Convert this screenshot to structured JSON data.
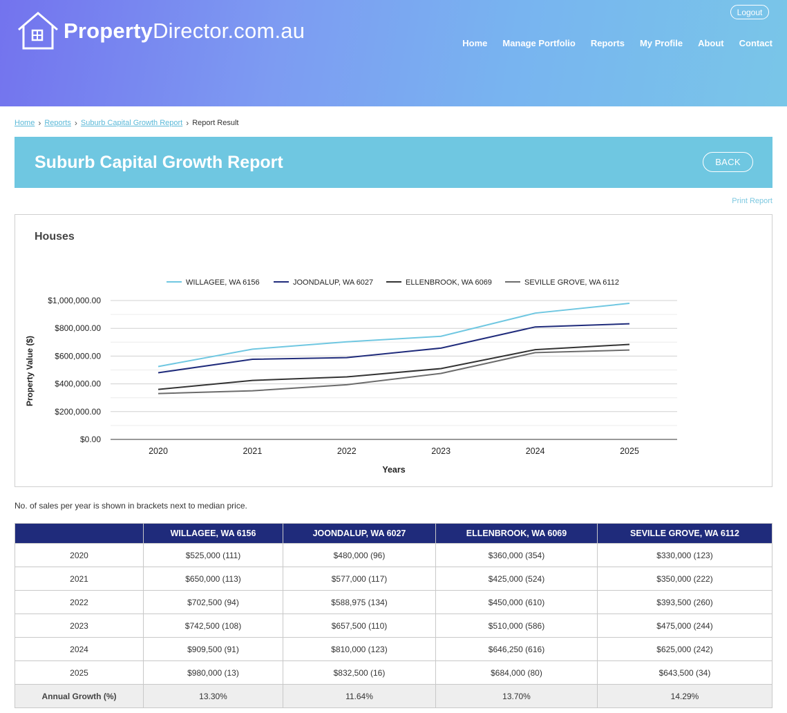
{
  "header": {
    "logo_bold": "Property",
    "logo_rest": "Director.com.au",
    "logout": "Logout",
    "nav": [
      "Home",
      "Manage Portfolio",
      "Reports",
      "My Profile",
      "About",
      "Contact"
    ]
  },
  "breadcrumb": {
    "home": "Home",
    "reports": "Reports",
    "report": "Suburb Capital Growth Report",
    "current": "Report Result"
  },
  "banner": {
    "title": "Suburb Capital Growth Report",
    "back": "BACK"
  },
  "print_label": "Print Report",
  "chart_title": "Houses",
  "note": "No. of sales per year is shown in brackets next to median price.",
  "colors": {
    "willagee": "#6fc7e1",
    "joondalup": "#1f2b7b",
    "ellenbrook": "#333333",
    "seville": "#6b6b6b",
    "table_header": "#1f2b7b",
    "banner": "#6fc7e1"
  },
  "chart_data": {
    "type": "line",
    "xlabel": "Years",
    "ylabel": "Property Value ($)",
    "categories": [
      "2020",
      "2021",
      "2022",
      "2023",
      "2024",
      "2025"
    ],
    "ylim": [
      0,
      1000000
    ],
    "yticks": [
      "$0.00",
      "$200,000.00",
      "$400,000.00",
      "$600,000.00",
      "$800,000.00",
      "$1,000,000.00"
    ],
    "legend_position": "top",
    "grid": true,
    "series": [
      {
        "name": "WILLAGEE, WA 6156",
        "color": "#6fc7e1",
        "values": [
          525000,
          650000,
          702500,
          742500,
          909500,
          980000
        ]
      },
      {
        "name": "JOONDALUP, WA 6027",
        "color": "#1f2b7b",
        "values": [
          480000,
          577000,
          588975,
          657500,
          810000,
          832500
        ]
      },
      {
        "name": "ELLENBROOK, WA 6069",
        "color": "#333333",
        "values": [
          360000,
          425000,
          450000,
          510000,
          646250,
          684000
        ]
      },
      {
        "name": "SEVILLE GROVE, WA 6112",
        "color": "#6b6b6b",
        "values": [
          330000,
          350000,
          393500,
          475000,
          625000,
          643500
        ]
      }
    ]
  },
  "table": {
    "headers": [
      "",
      "WILLAGEE, WA 6156",
      "JOONDALUP, WA 6027",
      "ELLENBROOK, WA 6069",
      "SEVILLE GROVE, WA 6112"
    ],
    "rows": [
      [
        "2020",
        "$525,000 (111)",
        "$480,000 (96)",
        "$360,000 (354)",
        "$330,000 (123)"
      ],
      [
        "2021",
        "$650,000 (113)",
        "$577,000 (117)",
        "$425,000 (524)",
        "$350,000 (222)"
      ],
      [
        "2022",
        "$702,500 (94)",
        "$588,975 (134)",
        "$450,000 (610)",
        "$393,500 (260)"
      ],
      [
        "2023",
        "$742,500 (108)",
        "$657,500 (110)",
        "$510,000 (586)",
        "$475,000 (244)"
      ],
      [
        "2024",
        "$909,500 (91)",
        "$810,000 (123)",
        "$646,250 (616)",
        "$625,000 (242)"
      ],
      [
        "2025",
        "$980,000 (13)",
        "$832,500 (16)",
        "$684,000 (80)",
        "$643,500 (34)"
      ]
    ],
    "growth": [
      "Annual Growth (%)",
      "13.30%",
      "11.64%",
      "13.70%",
      "14.29%"
    ]
  }
}
